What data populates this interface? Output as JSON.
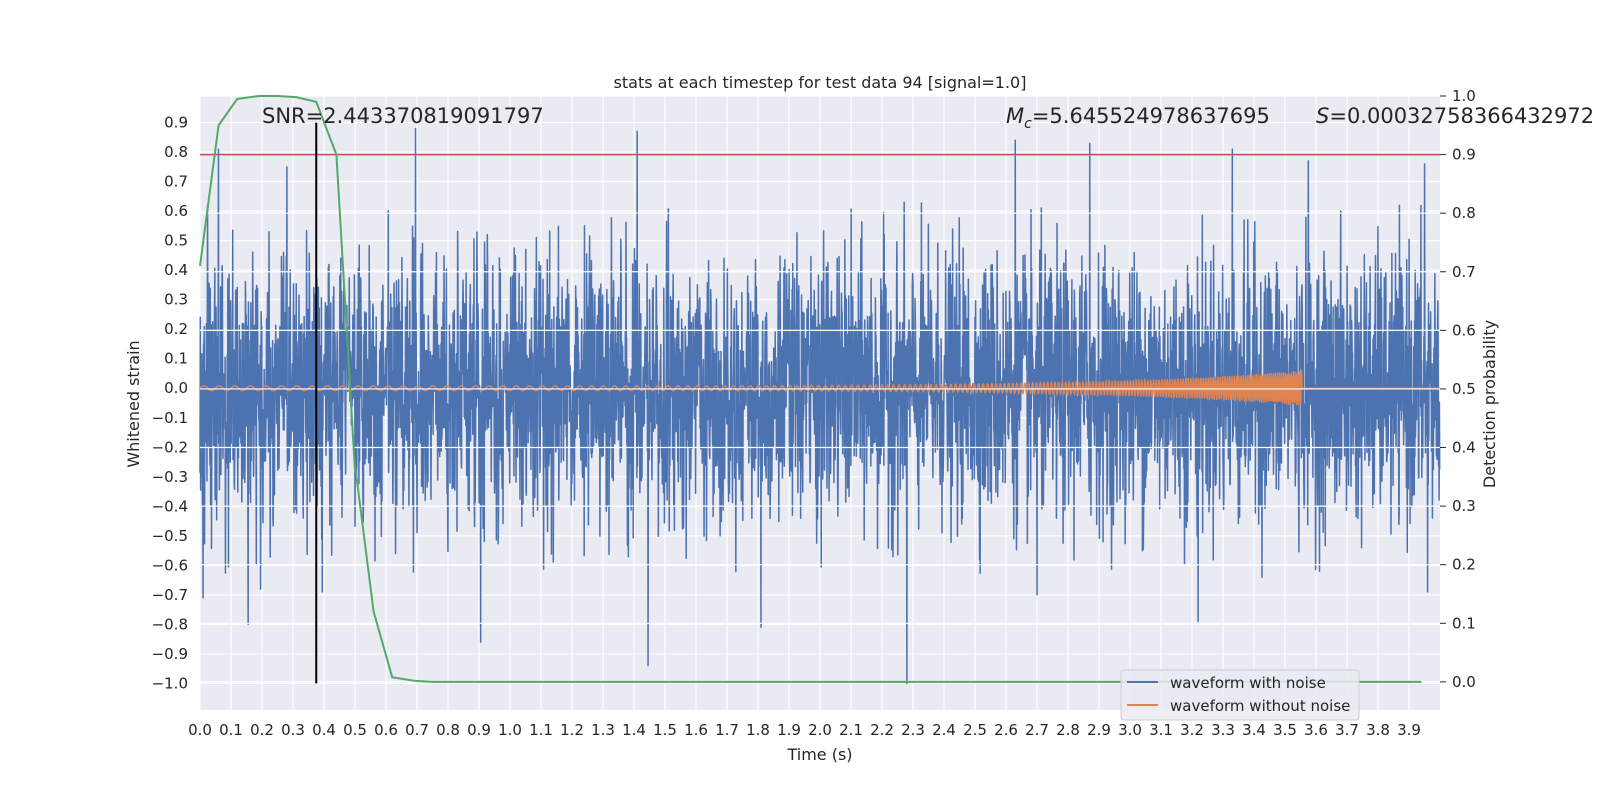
{
  "chart_data": {
    "type": "line",
    "title": "stats at each timestep for test data 94 [signal=1.0]",
    "xlabel": "Time (s)",
    "ylabel": "Whitened strain",
    "y2label": "Detection probability",
    "xlim": [
      0.0,
      4.0
    ],
    "ylim": [
      -1.09,
      0.99
    ],
    "y2lim": [
      -0.048,
      1.0
    ],
    "xticks": [
      0.0,
      0.1,
      0.2,
      0.3,
      0.4,
      0.5,
      0.6,
      0.7,
      0.8,
      0.9,
      1.0,
      1.1,
      1.2,
      1.3,
      1.4,
      1.5,
      1.6,
      1.7,
      1.8,
      1.9,
      2.0,
      2.1,
      2.2,
      2.3,
      2.4,
      2.5,
      2.6,
      2.7,
      2.8,
      2.9,
      3.0,
      3.1,
      3.2,
      3.3,
      3.4,
      3.5,
      3.6,
      3.7,
      3.8,
      3.9
    ],
    "xtick_labels": [
      "0.0",
      "0.1",
      "0.2",
      "0.3",
      "0.4",
      "0.5",
      "0.6",
      "0.7",
      "0.8",
      "0.9",
      "1.0",
      "1.1",
      "1.2",
      "1.3",
      "1.4",
      "1.5",
      "1.6",
      "1.7",
      "1.8",
      "1.9",
      "2.0",
      "2.1",
      "2.2",
      "2.3",
      "2.4",
      "2.5",
      "2.6",
      "2.7",
      "2.8",
      "2.9",
      "3.0",
      "3.1",
      "3.2",
      "3.3",
      "3.4",
      "3.5",
      "3.6",
      "3.7",
      "3.8",
      "3.9"
    ],
    "yticks": [
      0.9,
      0.8,
      0.7,
      0.6,
      0.5,
      0.4,
      0.3,
      0.2,
      0.1,
      0.0,
      -0.1,
      -0.2,
      -0.3,
      -0.4,
      -0.5,
      -0.6,
      -0.7,
      -0.8,
      -0.9,
      -1.0
    ],
    "ytick_labels": [
      "0.9",
      "0.8",
      "0.7",
      "0.6",
      "0.5",
      "0.4",
      "0.3",
      "0.2",
      "0.1",
      "0.0",
      "−0.1",
      "−0.2",
      "−0.3",
      "−0.4",
      "−0.5",
      "−0.6",
      "−0.7",
      "−0.8",
      "−0.9",
      "−1.0"
    ],
    "y2ticks": [
      1.0,
      0.9,
      0.8,
      0.7,
      0.6,
      0.5,
      0.4,
      0.3,
      0.2,
      0.1,
      0.0
    ],
    "y2tick_labels": [
      "1.0",
      "0.9",
      "0.8",
      "0.7",
      "0.6",
      "0.5",
      "0.4",
      "0.3",
      "0.2",
      "0.1",
      "0.0"
    ],
    "annotations": {
      "snr": "SNR=2.443370819091797",
      "mc_symbol": "M",
      "mc_subscript": "c",
      "mc_value": "=5.645524978637695",
      "s_symbol": "S",
      "s_value": "=0.00032758366432972"
    },
    "threshold": {
      "axis": "right",
      "value": 0.9,
      "color": "#c44e52"
    },
    "peak_marker": {
      "x": 0.375,
      "y_from": -1.0,
      "y_to": 0.9,
      "color": "#000000"
    },
    "series": [
      {
        "name": "waveform with noise",
        "axis": "left",
        "color": "#4c72b0",
        "style": "dense-noise",
        "n_samples": 4096,
        "noise_sigma": 0.22,
        "peaks": [
          {
            "x": 0.01,
            "y": -0.71
          },
          {
            "x": 0.06,
            "y": 0.81
          },
          {
            "x": 0.155,
            "y": -0.8
          },
          {
            "x": 0.195,
            "y": -0.68
          },
          {
            "x": 0.28,
            "y": 0.75
          },
          {
            "x": 0.395,
            "y": -0.69
          },
          {
            "x": 0.695,
            "y": 0.88
          },
          {
            "x": 0.905,
            "y": -0.86
          },
          {
            "x": 1.41,
            "y": 0.87
          },
          {
            "x": 1.445,
            "y": -0.94
          },
          {
            "x": 1.81,
            "y": -0.81
          },
          {
            "x": 2.28,
            "y": -1.0
          },
          {
            "x": 2.63,
            "y": 0.84
          },
          {
            "x": 2.7,
            "y": -0.7
          },
          {
            "x": 2.87,
            "y": 0.83
          },
          {
            "x": 3.22,
            "y": -0.79
          },
          {
            "x": 3.33,
            "y": 0.81
          },
          {
            "x": 3.575,
            "y": 0.77
          },
          {
            "x": 3.95,
            "y": 0.76
          },
          {
            "x": 3.96,
            "y": -0.69
          }
        ]
      },
      {
        "name": "waveform without noise",
        "axis": "left",
        "color": "#dd8452",
        "style": "chirp",
        "amplitude_start": 0.008,
        "amplitude_end": 0.06,
        "freq_start_hz": 20,
        "freq_end_hz": 160,
        "t_start": 0.0,
        "t_merger": 3.555,
        "t_end": 4.0
      },
      {
        "name": "detection probability",
        "axis": "right",
        "color": "#55a868",
        "style": "line",
        "x": [
          0.0,
          0.06,
          0.12,
          0.19,
          0.25,
          0.31,
          0.375,
          0.44,
          0.5,
          0.5,
          0.56,
          0.62,
          0.69,
          0.75,
          3.94
        ],
        "y": [
          0.71,
          0.95,
          0.995,
          1.0,
          1.0,
          0.998,
          0.99,
          0.9,
          0.36,
          0.37,
          0.12,
          0.008,
          0.002,
          0.0,
          0.0
        ]
      }
    ],
    "legend": {
      "placement": "lower-right",
      "entries": [
        {
          "label": "waveform with noise",
          "color": "#4c72b0"
        },
        {
          "label": "waveform without noise",
          "color": "#dd8452"
        }
      ]
    },
    "grid": true,
    "style": {
      "plot_background": "#eaeaf2",
      "grid_color": "#ffffff"
    }
  }
}
